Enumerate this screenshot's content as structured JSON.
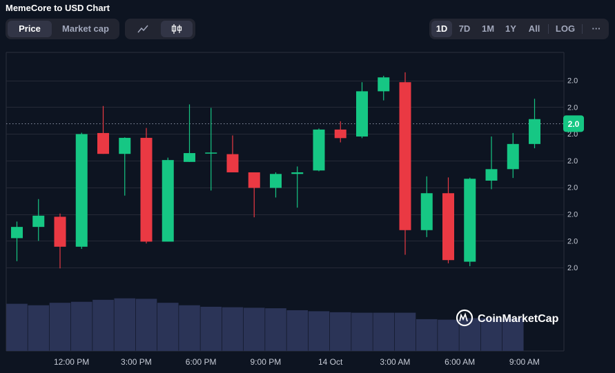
{
  "header": {
    "title": "MemeCore to USD Chart"
  },
  "metric_tabs": [
    {
      "label": "Price",
      "active": true
    },
    {
      "label": "Market cap",
      "active": false
    }
  ],
  "chart_modes": [
    {
      "icon": "line-chart-icon",
      "active": false
    },
    {
      "icon": "candlestick-icon",
      "active": true
    }
  ],
  "ranges": [
    {
      "label": "1D",
      "active": true
    },
    {
      "label": "7D"
    },
    {
      "label": "1M"
    },
    {
      "label": "1Y"
    },
    {
      "label": "All"
    }
  ],
  "log_label": "LOG",
  "more_label": "···",
  "watermark": "CoinMarketCap",
  "colors": {
    "up": "#16c784",
    "down": "#ea3943",
    "volume": "#2b3457",
    "grid": "#262a37",
    "background": "#0d1421",
    "badge": "#16c784"
  },
  "chart_data": {
    "type": "candlestick",
    "title": "MemeCore to USD Chart",
    "y_tick_labels": [
      "2.0",
      "2.0",
      "2.0",
      "2.0",
      "2.0",
      "2.0",
      "2.0",
      "2.0"
    ],
    "y_ticks_relative": [
      8,
      7,
      6,
      5,
      4,
      3,
      2,
      1
    ],
    "ylim_relative": [
      0,
      9
    ],
    "x_tick_labels": [
      "12:00 PM",
      "3:00 PM",
      "6:00 PM",
      "9:00 PM",
      "14 Oct",
      "3:00 AM",
      "6:00 AM",
      "9:00 AM"
    ],
    "x_tick_positions": [
      3,
      6,
      9,
      12,
      15,
      18,
      21,
      24
    ],
    "current_price_label": "2.0",
    "current_price_relative": 6.38,
    "candles": [
      {
        "x": 0,
        "o": 2.1,
        "c": 2.52,
        "h": 2.72,
        "l": 1.24
      },
      {
        "x": 1,
        "o": 2.52,
        "c": 2.94,
        "h": 3.56,
        "l": 2.0
      },
      {
        "x": 2,
        "o": 2.9,
        "c": 1.78,
        "h": 3.02,
        "l": 0.97
      },
      {
        "x": 3,
        "o": 1.78,
        "c": 5.99,
        "h": 6.04,
        "l": 1.7
      },
      {
        "x": 4,
        "o": 6.03,
        "c": 5.25,
        "h": 7.04,
        "l": 5.25
      },
      {
        "x": 5,
        "o": 5.25,
        "c": 5.85,
        "h": 5.87,
        "l": 3.69
      },
      {
        "x": 6,
        "o": 5.85,
        "c": 1.97,
        "h": 6.22,
        "l": 1.9
      },
      {
        "x": 7,
        "o": 1.97,
        "c": 5.02,
        "h": 5.11,
        "l": 1.97
      },
      {
        "x": 8,
        "o": 4.95,
        "c": 5.28,
        "h": 7.1,
        "l": 4.95
      },
      {
        "x": 9,
        "o": 5.26,
        "c": 5.3,
        "h": 6.97,
        "l": 3.88
      },
      {
        "x": 10,
        "o": 5.24,
        "c": 4.56,
        "h": 5.94,
        "l": 4.56
      },
      {
        "x": 11,
        "o": 4.56,
        "c": 3.98,
        "h": 4.56,
        "l": 2.88
      },
      {
        "x": 12,
        "o": 3.98,
        "c": 4.5,
        "h": 4.56,
        "l": 3.62
      },
      {
        "x": 13,
        "o": 4.5,
        "c": 4.56,
        "h": 4.78,
        "l": 3.24
      },
      {
        "x": 14,
        "o": 4.63,
        "c": 6.16,
        "h": 6.2,
        "l": 4.6
      },
      {
        "x": 15,
        "o": 6.16,
        "c": 5.84,
        "h": 6.47,
        "l": 5.68
      },
      {
        "x": 16,
        "o": 5.9,
        "c": 7.59,
        "h": 7.93,
        "l": 5.84
      },
      {
        "x": 17,
        "o": 7.59,
        "c": 8.11,
        "h": 8.17,
        "l": 7.25
      },
      {
        "x": 18,
        "o": 7.93,
        "c": 2.4,
        "h": 8.3,
        "l": 1.48
      },
      {
        "x": 19,
        "o": 2.4,
        "c": 3.78,
        "h": 4.41,
        "l": 2.14
      },
      {
        "x": 20,
        "o": 3.78,
        "c": 1.28,
        "h": 4.37,
        "l": 1.16
      },
      {
        "x": 21,
        "o": 1.22,
        "c": 4.32,
        "h": 4.36,
        "l": 1.05
      },
      {
        "x": 22,
        "o": 4.25,
        "c": 4.68,
        "h": 5.9,
        "l": 3.93
      },
      {
        "x": 23,
        "o": 4.68,
        "c": 5.62,
        "h": 6.03,
        "l": 4.35
      },
      {
        "x": 24,
        "o": 5.62,
        "c": 6.55,
        "h": 7.31,
        "l": 5.46
      }
    ],
    "volume_relative": [
      0.95,
      0.92,
      0.97,
      0.99,
      1.03,
      1.06,
      1.05,
      0.97,
      0.92,
      0.89,
      0.88,
      0.87,
      0.86,
      0.82,
      0.8,
      0.78,
      0.77,
      0.77,
      0.77,
      0.64,
      0.63,
      0.66,
      0.66,
      0.66,
      0.0
    ]
  }
}
